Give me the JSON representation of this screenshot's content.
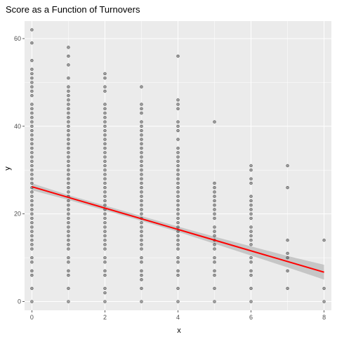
{
  "chart_data": {
    "type": "scatter",
    "title": "Score as a Function of Turnovers",
    "xlabel": "x",
    "ylabel": "y",
    "xlim": [
      -0.2,
      8.2
    ],
    "ylim": [
      -2,
      64
    ],
    "x_ticks": [
      0,
      2,
      4,
      6,
      8
    ],
    "y_ticks": [
      0,
      20,
      40,
      60
    ],
    "grid": true,
    "point_color": "#000000",
    "fit_color": "#ff0000",
    "band_color": "#bfbfbf",
    "panel_color": "#ebebeb",
    "points": [
      {
        "x": 0,
        "ys": [
          0,
          3,
          6,
          7,
          9,
          10,
          12,
          13,
          14,
          15,
          16,
          17,
          18,
          19,
          20,
          21,
          22,
          23,
          24,
          25,
          26,
          27,
          28,
          29,
          30,
          31,
          32,
          33,
          34,
          35,
          36,
          37,
          38,
          39,
          40,
          41,
          42,
          43,
          44,
          45,
          47,
          48,
          49,
          50,
          51,
          52,
          53,
          55,
          59,
          62
        ]
      },
      {
        "x": 1,
        "ys": [
          0,
          3,
          6,
          7,
          9,
          10,
          12,
          13,
          14,
          15,
          16,
          17,
          18,
          19,
          20,
          21,
          22,
          23,
          24,
          25,
          26,
          27,
          28,
          29,
          30,
          31,
          32,
          33,
          34,
          35,
          36,
          37,
          38,
          39,
          40,
          41,
          42,
          43,
          44,
          45,
          46,
          47,
          48,
          49,
          51,
          54,
          56,
          58
        ]
      },
      {
        "x": 2,
        "ys": [
          0,
          2,
          3,
          6,
          7,
          9,
          10,
          12,
          13,
          14,
          15,
          16,
          17,
          18,
          19,
          20,
          21,
          22,
          23,
          24,
          25,
          26,
          27,
          28,
          29,
          30,
          31,
          32,
          33,
          34,
          35,
          36,
          37,
          38,
          39,
          40,
          41,
          42,
          43,
          44,
          45,
          48,
          49,
          51,
          52
        ]
      },
      {
        "x": 3,
        "ys": [
          0,
          3,
          5,
          6,
          7,
          9,
          10,
          12,
          13,
          14,
          15,
          16,
          17,
          18,
          19,
          20,
          21,
          22,
          23,
          24,
          25,
          26,
          27,
          28,
          29,
          30,
          31,
          32,
          33,
          34,
          35,
          36,
          37,
          38,
          39,
          40,
          41,
          43,
          44,
          45,
          49
        ]
      },
      {
        "x": 4,
        "ys": [
          0,
          3,
          6,
          7,
          9,
          10,
          12,
          13,
          14,
          15,
          16,
          17,
          18,
          19,
          20,
          21,
          22,
          23,
          24,
          25,
          26,
          27,
          28,
          29,
          30,
          31,
          32,
          33,
          34,
          35,
          37,
          39,
          40,
          41,
          44,
          45,
          46,
          56
        ]
      },
      {
        "x": 5,
        "ys": [
          0,
          3,
          6,
          7,
          9,
          10,
          12,
          13,
          14,
          15,
          16,
          17,
          19,
          20,
          21,
          22,
          23,
          24,
          25,
          26,
          27,
          41
        ]
      },
      {
        "x": 6,
        "ys": [
          0,
          3,
          6,
          7,
          9,
          10,
          13,
          14,
          15,
          16,
          17,
          19,
          20,
          21,
          22,
          23,
          24,
          27,
          28,
          30,
          31
        ]
      },
      {
        "x": 7,
        "ys": [
          3,
          7,
          10,
          11,
          14,
          26,
          31
        ]
      },
      {
        "x": 8,
        "ys": [
          0,
          3,
          14
        ]
      }
    ],
    "fit_line": {
      "x": [
        0,
        8
      ],
      "y": [
        26.2,
        6.7
      ]
    },
    "confidence_band": {
      "x": [
        0,
        1,
        2,
        3,
        4,
        5,
        6,
        7,
        8
      ],
      "lower": [
        25.4,
        23.2,
        20.8,
        18.4,
        15.9,
        13.2,
        10.5,
        7.8,
        5.0
      ],
      "upper": [
        27.0,
        24.3,
        21.9,
        19.5,
        17.1,
        14.8,
        12.6,
        10.4,
        8.4
      ]
    }
  }
}
